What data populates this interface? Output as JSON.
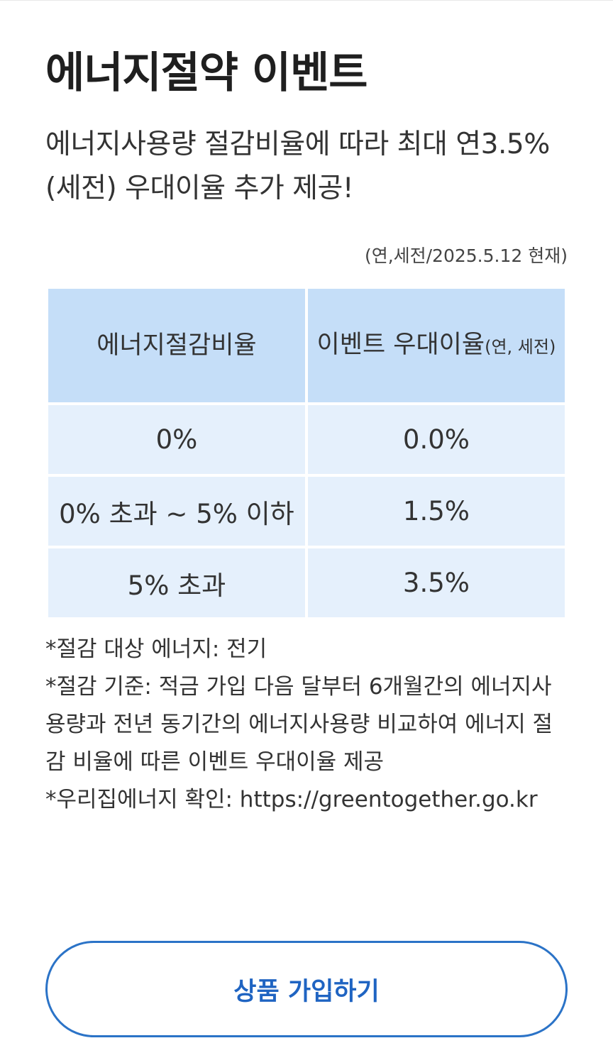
{
  "header": {
    "title": "에너지절약 이벤트",
    "subtitle": "에너지사용량 절감비율에 따라 최대 연3.5%(세전) 우대이율 추가 제공!"
  },
  "rate_table": {
    "basis_note": "(연,세전/2025.5.12 현재)",
    "columns": {
      "ratio_header": "에너지절감비율",
      "rate_header": "이벤트 우대이율",
      "rate_header_unit": "(연, 세전)"
    },
    "rows": [
      {
        "ratio": "0%",
        "rate": "0.0%"
      },
      {
        "ratio": "0% 초과 ~ 5% 이하",
        "rate": "1.5%"
      },
      {
        "ratio": "5% 초과",
        "rate": "3.5%"
      }
    ]
  },
  "notes": [
    "*절감 대상 에너지: 전기",
    "*절감 기준: 적금 가입 다음 달부터 6개월간의 에너지사용량과 전년 동기간의 에너지사용량 비교하여 에너지 절감 비율에 따른 이벤트 우대이율 제공",
    "*우리집에너지 확인: https://greentogether.go.kr"
  ],
  "cta": {
    "label": "상품 가입하기"
  },
  "colors": {
    "header_cell_bg": "#c5def8",
    "body_cell_bg": "#e5f0fc",
    "accent": "#2b73c7"
  }
}
